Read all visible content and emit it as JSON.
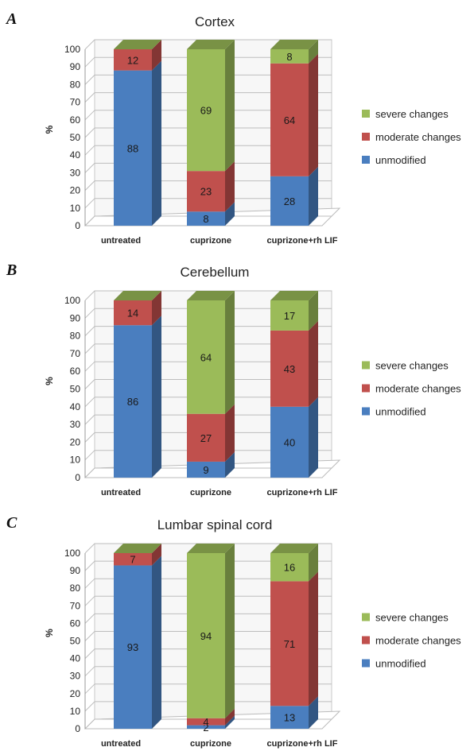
{
  "legend": [
    "severe changes",
    "moderate changes",
    "unmodified"
  ],
  "colors": {
    "unmodified": "#4a7ebf",
    "moderate": "#c0504d",
    "severe": "#9bbb59"
  },
  "chart_data": [
    {
      "panel": "A",
      "type": "bar",
      "stacked": true,
      "title": "Cortex",
      "ylabel": "%",
      "ylim": [
        0,
        100
      ],
      "categories": [
        "untreated",
        "cuprizone",
        "cuprizone+rh LIF"
      ],
      "series": [
        {
          "name": "unmodified",
          "values": [
            88,
            8,
            28
          ]
        },
        {
          "name": "moderate changes",
          "values": [
            12,
            23,
            64
          ]
        },
        {
          "name": "severe changes",
          "values": [
            0,
            69,
            8
          ]
        }
      ]
    },
    {
      "panel": "B",
      "type": "bar",
      "stacked": true,
      "title": "Cerebellum",
      "ylabel": "%",
      "ylim": [
        0,
        100
      ],
      "categories": [
        "untreated",
        "cuprizone",
        "cuprizone+rh LIF"
      ],
      "series": [
        {
          "name": "unmodified",
          "values": [
            86,
            9,
            40
          ]
        },
        {
          "name": "moderate changes",
          "values": [
            14,
            27,
            43
          ]
        },
        {
          "name": "severe changes",
          "values": [
            0,
            64,
            17
          ]
        }
      ]
    },
    {
      "panel": "C",
      "type": "bar",
      "stacked": true,
      "title": "Lumbar spinal cord",
      "ylabel": "%",
      "ylim": [
        0,
        100
      ],
      "categories": [
        "untreated",
        "cuprizone",
        "cuprizone+rh LIF"
      ],
      "series": [
        {
          "name": "unmodified",
          "values": [
            93,
            2,
            13
          ]
        },
        {
          "name": "moderate changes",
          "values": [
            7,
            4,
            71
          ]
        },
        {
          "name": "severe changes",
          "values": [
            0,
            94,
            16
          ]
        }
      ]
    }
  ]
}
